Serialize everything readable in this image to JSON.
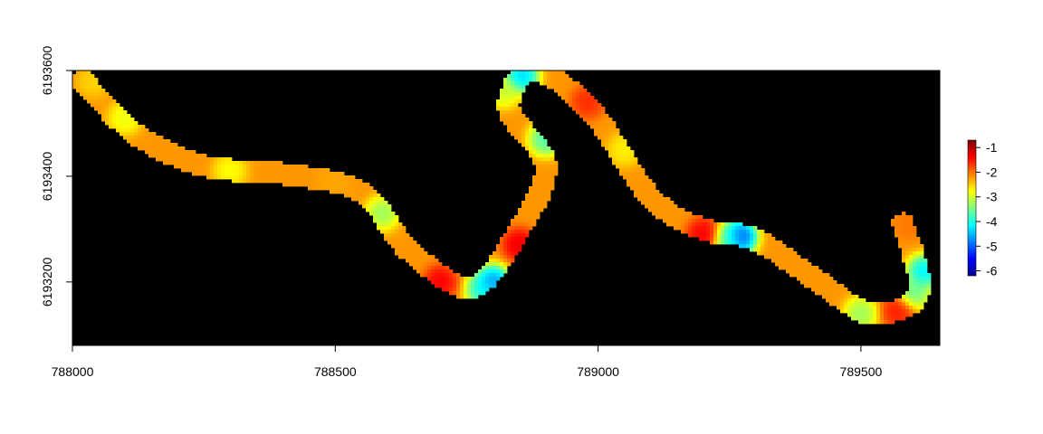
{
  "chart_data": {
    "type": "heatmap",
    "title": "",
    "xlabel": "",
    "ylabel": "",
    "x_range": [
      788000,
      789650
    ],
    "y_range": [
      6193080,
      6193600
    ],
    "x_ticks": [
      "788000",
      "788500",
      "789000",
      "789500"
    ],
    "y_ticks": [
      "6193200",
      "6193400",
      "6193600"
    ],
    "background_color": "#000000",
    "grid": false,
    "legend": {
      "placement": "right",
      "ticks": [
        "-1",
        "-2",
        "-3",
        "-4",
        "-5",
        "-6"
      ],
      "range": [
        -6.2,
        -0.7
      ],
      "colors": [
        "#00008f",
        "#0000ff",
        "#0080ff",
        "#00ffff",
        "#80ff80",
        "#ffff00",
        "#ff8000",
        "#ff0000",
        "#800000"
      ]
    },
    "river": {
      "centerline": [
        [
          788020,
          6193580
        ],
        [
          788120,
          6193480
        ],
        [
          788250,
          6193420
        ],
        [
          788400,
          6193405
        ],
        [
          788550,
          6193370
        ],
        [
          788640,
          6193260
        ],
        [
          788760,
          6193190
        ],
        [
          788850,
          6193300
        ],
        [
          788900,
          6193420
        ],
        [
          788830,
          6193530
        ],
        [
          788880,
          6193600
        ],
        [
          788990,
          6193520
        ],
        [
          789100,
          6193360
        ],
        [
          789200,
          6193300
        ],
        [
          789300,
          6193280
        ],
        [
          789420,
          6193200
        ],
        [
          789520,
          6193140
        ],
        [
          789610,
          6193180
        ],
        [
          789580,
          6193310
        ]
      ],
      "base_value": -2.2,
      "features": [
        {
          "x": 788040,
          "y": 6193580,
          "value": -2.6
        },
        {
          "x": 788100,
          "y": 6193510,
          "value": -3.0
        },
        {
          "x": 788300,
          "y": 6193410,
          "value": -2.9
        },
        {
          "x": 788500,
          "y": 6193390,
          "value": -2.3
        },
        {
          "x": 788590,
          "y": 6193330,
          "value": -3.5
        },
        {
          "x": 788700,
          "y": 6193200,
          "value": -1.2
        },
        {
          "x": 788780,
          "y": 6193185,
          "value": -4.3
        },
        {
          "x": 788800,
          "y": 6193200,
          "value": -5.2
        },
        {
          "x": 788850,
          "y": 6193270,
          "value": -1.1
        },
        {
          "x": 788855,
          "y": 6193590,
          "value": -4.8
        },
        {
          "x": 788820,
          "y": 6193560,
          "value": -3.2
        },
        {
          "x": 788900,
          "y": 6193470,
          "value": -4.0
        },
        {
          "x": 788980,
          "y": 6193540,
          "value": -1.5
        },
        {
          "x": 789050,
          "y": 6193450,
          "value": -2.8
        },
        {
          "x": 789200,
          "y": 6193290,
          "value": -1.2
        },
        {
          "x": 789270,
          "y": 6193285,
          "value": -5.7
        },
        {
          "x": 789250,
          "y": 6193280,
          "value": -3.8
        },
        {
          "x": 789500,
          "y": 6193140,
          "value": -3.5
        },
        {
          "x": 789570,
          "y": 6193145,
          "value": -1.4
        },
        {
          "x": 789600,
          "y": 6193180,
          "value": -3.8
        },
        {
          "x": 789620,
          "y": 6193220,
          "value": -4.6
        },
        {
          "x": 789590,
          "y": 6193310,
          "value": -2.0
        }
      ]
    }
  }
}
